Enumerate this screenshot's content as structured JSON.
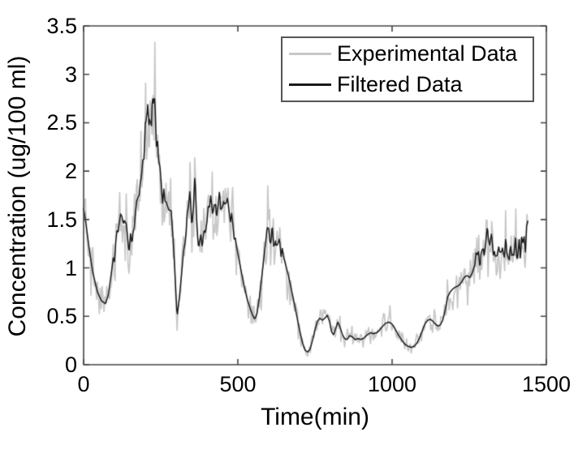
{
  "chart_data": {
    "type": "line",
    "title": "",
    "xlabel": "Time(min)",
    "ylabel": "Concentration (ug/100 ml)",
    "xlim": [
      0,
      1500
    ],
    "ylim": [
      0,
      3.5
    ],
    "xticks": [
      0,
      500,
      1000,
      1500
    ],
    "xtick_labels": [
      "0",
      "500",
      "1000",
      "1500"
    ],
    "yticks": [
      0,
      0.5,
      1,
      1.5,
      2,
      2.5,
      3,
      3.5
    ],
    "ytick_labels": [
      "0",
      "0.5",
      "1",
      "1.5",
      "2",
      "2.5",
      "3",
      "3.5"
    ],
    "grid": false,
    "background_color": "#ffffff",
    "axis_color": "#454545",
    "text_color": "#000000",
    "legend": {
      "position": "top-right",
      "entries": [
        {
          "label": "Experimental Data",
          "color": "#c7c7c7"
        },
        {
          "label": "Filtered Data",
          "color": "#1a1a1a"
        }
      ]
    },
    "series": [
      {
        "name": "Filtered Data",
        "color": "#1a1a1a",
        "keypoints": [
          [
            0,
            1.62
          ],
          [
            8,
            1.45
          ],
          [
            18,
            1.2
          ],
          [
            30,
            0.95
          ],
          [
            45,
            0.75
          ],
          [
            58,
            0.66
          ],
          [
            71,
            0.63
          ],
          [
            80,
            0.72
          ],
          [
            90,
            0.95
          ],
          [
            100,
            1.2
          ],
          [
            110,
            1.4
          ],
          [
            118,
            1.5
          ],
          [
            124,
            1.56
          ],
          [
            131,
            1.42
          ],
          [
            137,
            1.52
          ],
          [
            145,
            1.23
          ],
          [
            152,
            1.35
          ],
          [
            158,
            1.28
          ],
          [
            165,
            1.45
          ],
          [
            172,
            1.6
          ],
          [
            180,
            1.74
          ],
          [
            186,
            1.85
          ],
          [
            192,
            2.05
          ],
          [
            197,
            2.25
          ],
          [
            202,
            2.45
          ],
          [
            206,
            2.7
          ],
          [
            208,
            2.87
          ],
          [
            211,
            2.65
          ],
          [
            214,
            2.5
          ],
          [
            216,
            2.32
          ],
          [
            219,
            2.55
          ],
          [
            222,
            2.7
          ],
          [
            225,
            2.6
          ],
          [
            229,
            2.8
          ],
          [
            233,
            2.55
          ],
          [
            237,
            2.4
          ],
          [
            242,
            2.12
          ],
          [
            246,
            2.05
          ],
          [
            250,
            1.95
          ],
          [
            255,
            1.8
          ],
          [
            260,
            1.7
          ],
          [
            268,
            1.68
          ],
          [
            276,
            1.6
          ],
          [
            284,
            1.59
          ],
          [
            290,
            1.3
          ],
          [
            296,
            0.95
          ],
          [
            303,
            0.5
          ],
          [
            310,
            0.68
          ],
          [
            318,
            0.95
          ],
          [
            326,
            1.25
          ],
          [
            334,
            1.5
          ],
          [
            340,
            1.65
          ],
          [
            345,
            1.7
          ],
          [
            350,
            1.55
          ],
          [
            355,
            1.72
          ],
          [
            361,
            1.9
          ],
          [
            366,
            1.55
          ],
          [
            371,
            1.3
          ],
          [
            375,
            1.21
          ],
          [
            380,
            1.35
          ],
          [
            385,
            1.25
          ],
          [
            390,
            1.32
          ],
          [
            395,
            1.28
          ],
          [
            400,
            1.45
          ],
          [
            406,
            1.6
          ],
          [
            412,
            1.72
          ],
          [
            418,
            1.58
          ],
          [
            424,
            1.68
          ],
          [
            430,
            1.55
          ],
          [
            436,
            1.65
          ],
          [
            442,
            1.75
          ],
          [
            448,
            1.6
          ],
          [
            454,
            1.7
          ],
          [
            460,
            1.62
          ],
          [
            466,
            1.72
          ],
          [
            472,
            1.6
          ],
          [
            478,
            1.5
          ],
          [
            484,
            1.4
          ],
          [
            492,
            1.28
          ],
          [
            500,
            1.15
          ],
          [
            510,
            0.98
          ],
          [
            520,
            0.82
          ],
          [
            530,
            0.68
          ],
          [
            540,
            0.58
          ],
          [
            548,
            0.51
          ],
          [
            555,
            0.47
          ],
          [
            562,
            0.53
          ],
          [
            570,
            0.7
          ],
          [
            578,
            0.92
          ],
          [
            586,
            1.15
          ],
          [
            594,
            1.38
          ],
          [
            600,
            1.42
          ],
          [
            605,
            1.28
          ],
          [
            610,
            1.38
          ],
          [
            616,
            1.22
          ],
          [
            622,
            1.32
          ],
          [
            628,
            1.18
          ],
          [
            634,
            1.28
          ],
          [
            640,
            1.2
          ],
          [
            648,
            1.12
          ],
          [
            656,
            1.02
          ],
          [
            664,
            0.92
          ],
          [
            672,
            0.8
          ],
          [
            680,
            0.68
          ],
          [
            690,
            0.52
          ],
          [
            700,
            0.36
          ],
          [
            710,
            0.22
          ],
          [
            718,
            0.15
          ],
          [
            726,
            0.13
          ],
          [
            734,
            0.16
          ],
          [
            742,
            0.25
          ],
          [
            750,
            0.36
          ],
          [
            758,
            0.45
          ],
          [
            766,
            0.48
          ],
          [
            774,
            0.46
          ],
          [
            782,
            0.48
          ],
          [
            790,
            0.51
          ],
          [
            797,
            0.45
          ],
          [
            804,
            0.34
          ],
          [
            810,
            0.31
          ],
          [
            817,
            0.37
          ],
          [
            824,
            0.44
          ],
          [
            830,
            0.4
          ],
          [
            838,
            0.32
          ],
          [
            846,
            0.27
          ],
          [
            854,
            0.26
          ],
          [
            862,
            0.3
          ],
          [
            870,
            0.29
          ],
          [
            880,
            0.26
          ],
          [
            890,
            0.27
          ],
          [
            900,
            0.26
          ],
          [
            910,
            0.28
          ],
          [
            920,
            0.31
          ],
          [
            930,
            0.33
          ],
          [
            940,
            0.32
          ],
          [
            950,
            0.33
          ],
          [
            960,
            0.36
          ],
          [
            970,
            0.4
          ],
          [
            980,
            0.43
          ],
          [
            990,
            0.44
          ],
          [
            1000,
            0.42
          ],
          [
            1010,
            0.37
          ],
          [
            1020,
            0.31
          ],
          [
            1030,
            0.26
          ],
          [
            1042,
            0.21
          ],
          [
            1052,
            0.19
          ],
          [
            1062,
            0.18
          ],
          [
            1072,
            0.19
          ],
          [
            1082,
            0.23
          ],
          [
            1092,
            0.3
          ],
          [
            1100,
            0.37
          ],
          [
            1108,
            0.43
          ],
          [
            1116,
            0.46
          ],
          [
            1124,
            0.47
          ],
          [
            1132,
            0.45
          ],
          [
            1140,
            0.42
          ],
          [
            1148,
            0.4
          ],
          [
            1156,
            0.41
          ],
          [
            1164,
            0.46
          ],
          [
            1172,
            0.56
          ],
          [
            1180,
            0.7
          ],
          [
            1188,
            0.75
          ],
          [
            1196,
            0.78
          ],
          [
            1204,
            0.8
          ],
          [
            1212,
            0.81
          ],
          [
            1220,
            0.83
          ],
          [
            1228,
            0.87
          ],
          [
            1236,
            0.91
          ],
          [
            1244,
            0.92
          ],
          [
            1252,
            0.9
          ],
          [
            1260,
            0.95
          ],
          [
            1268,
            1.03
          ],
          [
            1274,
            1.1
          ],
          [
            1280,
            1.16
          ],
          [
            1286,
            1.05
          ],
          [
            1292,
            1.22
          ],
          [
            1298,
            1.12
          ],
          [
            1304,
            1.3
          ],
          [
            1310,
            1.36
          ],
          [
            1316,
            1.22
          ],
          [
            1322,
            1.32
          ],
          [
            1328,
            1.15
          ],
          [
            1334,
            1.06
          ],
          [
            1340,
            1.1
          ],
          [
            1346,
            1.2
          ],
          [
            1352,
            1.1
          ],
          [
            1358,
            1.22
          ],
          [
            1364,
            1.14
          ],
          [
            1370,
            1.2
          ],
          [
            1376,
            1.12
          ],
          [
            1382,
            1.24
          ],
          [
            1388,
            1.18
          ],
          [
            1394,
            1.12
          ],
          [
            1400,
            1.22
          ],
          [
            1406,
            1.16
          ],
          [
            1412,
            1.26
          ],
          [
            1418,
            1.2
          ],
          [
            1424,
            1.24
          ],
          [
            1430,
            1.28
          ],
          [
            1436,
            1.38
          ],
          [
            1441,
            1.5
          ]
        ],
        "jitter_regions": [
          [
            96,
            184,
            0.05
          ],
          [
            186,
            260,
            0.08
          ],
          [
            328,
            494,
            0.065
          ],
          [
            596,
            646,
            0.05
          ],
          [
            1270,
            1441,
            0.055
          ]
        ],
        "line_width": 1.5
      },
      {
        "name": "Experimental Data",
        "color": "#c7c7c7",
        "derived_from": "Filtered Data",
        "noise_seed": 20,
        "noise_std_base": 0.02,
        "noise_std_scale": 0.105,
        "sample_step_min": 3,
        "line_width": 1.7
      }
    ]
  }
}
